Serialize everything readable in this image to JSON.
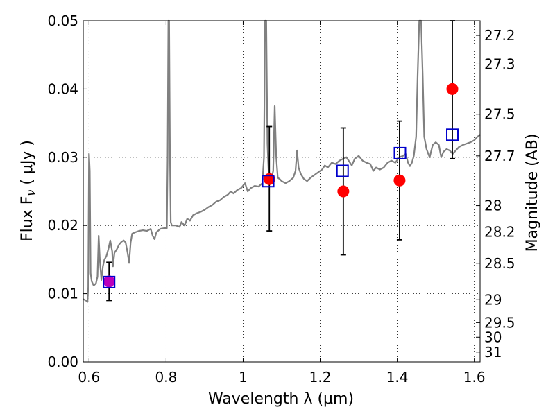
{
  "chart_data": {
    "type": "scatter",
    "xlabel": "Wavelength  λ (μm)",
    "ylabel": "Flux  F",
    "ylabel_sub": "ν",
    "ylabel_unit": " ( μJy )",
    "y2label": "Magnitude (AB)",
    "xlim": [
      0.585,
      1.615
    ],
    "ylim": [
      0.0,
      0.05
    ],
    "grid": true,
    "x_ticks": [
      {
        "value": 0.6,
        "label": "0.6"
      },
      {
        "value": 0.8,
        "label": "0.8"
      },
      {
        "value": 1.0,
        "label": "1"
      },
      {
        "value": 1.2,
        "label": "1.2"
      },
      {
        "value": 1.4,
        "label": "1.4"
      },
      {
        "value": 1.6,
        "label": "1.6"
      }
    ],
    "y_ticks": [
      {
        "value": 0.0,
        "label": "0.00"
      },
      {
        "value": 0.01,
        "label": "0.01"
      },
      {
        "value": 0.02,
        "label": "0.02"
      },
      {
        "value": 0.03,
        "label": "0.03"
      },
      {
        "value": 0.04,
        "label": "0.04"
      },
      {
        "value": 0.05,
        "label": "0.05"
      }
    ],
    "y2_ticks": [
      {
        "value": 27.2,
        "label": "27.2"
      },
      {
        "value": 27.3,
        "label": "27.3"
      },
      {
        "value": 27.5,
        "label": "27.5"
      },
      {
        "value": 27.7,
        "label": "27.7"
      },
      {
        "value": 28.0,
        "label": "28"
      },
      {
        "value": 28.2,
        "label": "28.2"
      },
      {
        "value": 28.5,
        "label": "28.5"
      },
      {
        "value": 29.0,
        "label": "29"
      },
      {
        "value": 29.5,
        "label": "29.5"
      },
      {
        "value": 30.0,
        "label": "30"
      },
      {
        "value": 31.0,
        "label": "31"
      }
    ],
    "colors": {
      "spectrum": "#808080",
      "observed": "#ff0000",
      "model": "#0000cc",
      "first_point": "#bb00bb",
      "errorbar": "#000000"
    },
    "spectrum": [
      [
        0.585,
        0.0092
      ],
      [
        0.592,
        0.009
      ],
      [
        0.596,
        0.0088
      ],
      [
        0.598,
        0.011
      ],
      [
        0.6,
        0.0305
      ],
      [
        0.602,
        0.028
      ],
      [
        0.604,
        0.013
      ],
      [
        0.607,
        0.0118
      ],
      [
        0.612,
        0.0112
      ],
      [
        0.618,
        0.0115
      ],
      [
        0.622,
        0.0125
      ],
      [
        0.625,
        0.0185
      ],
      [
        0.628,
        0.015
      ],
      [
        0.632,
        0.012
      ],
      [
        0.636,
        0.014
      ],
      [
        0.64,
        0.015
      ],
      [
        0.645,
        0.0155
      ],
      [
        0.65,
        0.0165
      ],
      [
        0.655,
        0.0178
      ],
      [
        0.66,
        0.0162
      ],
      [
        0.662,
        0.014
      ],
      [
        0.666,
        0.016
      ],
      [
        0.672,
        0.0165
      ],
      [
        0.678,
        0.0172
      ],
      [
        0.684,
        0.0176
      ],
      [
        0.69,
        0.0178
      ],
      [
        0.695,
        0.0175
      ],
      [
        0.7,
        0.016
      ],
      [
        0.704,
        0.0145
      ],
      [
        0.708,
        0.0175
      ],
      [
        0.712,
        0.0188
      ],
      [
        0.72,
        0.019
      ],
      [
        0.73,
        0.0192
      ],
      [
        0.74,
        0.0193
      ],
      [
        0.75,
        0.0192
      ],
      [
        0.76,
        0.0195
      ],
      [
        0.765,
        0.0185
      ],
      [
        0.77,
        0.018
      ],
      [
        0.775,
        0.019
      ],
      [
        0.785,
        0.0195
      ],
      [
        0.795,
        0.0196
      ],
      [
        0.802,
        0.0196
      ],
      [
        0.804,
        0.03
      ],
      [
        0.806,
        0.05
      ],
      [
        0.808,
        0.05
      ],
      [
        0.81,
        0.03
      ],
      [
        0.812,
        0.0205
      ],
      [
        0.815,
        0.02
      ],
      [
        0.825,
        0.02
      ],
      [
        0.835,
        0.0198
      ],
      [
        0.84,
        0.0205
      ],
      [
        0.848,
        0.02
      ],
      [
        0.855,
        0.021
      ],
      [
        0.862,
        0.0207
      ],
      [
        0.87,
        0.0215
      ],
      [
        0.88,
        0.0218
      ],
      [
        0.89,
        0.022
      ],
      [
        0.9,
        0.0223
      ],
      [
        0.91,
        0.0227
      ],
      [
        0.92,
        0.023
      ],
      [
        0.93,
        0.0235
      ],
      [
        0.94,
        0.0237
      ],
      [
        0.95,
        0.0242
      ],
      [
        0.96,
        0.0245
      ],
      [
        0.968,
        0.025
      ],
      [
        0.975,
        0.0247
      ],
      [
        0.985,
        0.0252
      ],
      [
        0.995,
        0.0255
      ],
      [
        1.005,
        0.0262
      ],
      [
        1.012,
        0.025
      ],
      [
        1.02,
        0.0255
      ],
      [
        1.03,
        0.0258
      ],
      [
        1.04,
        0.0257
      ],
      [
        1.05,
        0.0262
      ],
      [
        1.054,
        0.03
      ],
      [
        1.057,
        0.05
      ],
      [
        1.06,
        0.05
      ],
      [
        1.063,
        0.032
      ],
      [
        1.066,
        0.028
      ],
      [
        1.07,
        0.0275
      ],
      [
        1.074,
        0.027
      ],
      [
        1.078,
        0.028
      ],
      [
        1.082,
        0.0375
      ],
      [
        1.086,
        0.03
      ],
      [
        1.09,
        0.027
      ],
      [
        1.095,
        0.0268
      ],
      [
        1.1,
        0.0265
      ],
      [
        1.11,
        0.0262
      ],
      [
        1.12,
        0.0265
      ],
      [
        1.13,
        0.027
      ],
      [
        1.136,
        0.028
      ],
      [
        1.14,
        0.031
      ],
      [
        1.144,
        0.0285
      ],
      [
        1.15,
        0.0275
      ],
      [
        1.158,
        0.0268
      ],
      [
        1.166,
        0.0265
      ],
      [
        1.175,
        0.027
      ],
      [
        1.185,
        0.0274
      ],
      [
        1.195,
        0.0278
      ],
      [
        1.205,
        0.0282
      ],
      [
        1.212,
        0.0288
      ],
      [
        1.22,
        0.0285
      ],
      [
        1.23,
        0.0292
      ],
      [
        1.24,
        0.029
      ],
      [
        1.25,
        0.0295
      ],
      [
        1.26,
        0.0298
      ],
      [
        1.268,
        0.03
      ],
      [
        1.274,
        0.0295
      ],
      [
        1.282,
        0.0288
      ],
      [
        1.29,
        0.0298
      ],
      [
        1.3,
        0.0302
      ],
      [
        1.31,
        0.0295
      ],
      [
        1.32,
        0.0292
      ],
      [
        1.33,
        0.029
      ],
      [
        1.338,
        0.028
      ],
      [
        1.345,
        0.0285
      ],
      [
        1.355,
        0.0282
      ],
      [
        1.365,
        0.0285
      ],
      [
        1.375,
        0.0292
      ],
      [
        1.385,
        0.0295
      ],
      [
        1.395,
        0.0292
      ],
      [
        1.405,
        0.03
      ],
      [
        1.415,
        0.0302
      ],
      [
        1.422,
        0.0305
      ],
      [
        1.428,
        0.0292
      ],
      [
        1.433,
        0.0287
      ],
      [
        1.438,
        0.0292
      ],
      [
        1.443,
        0.0302
      ],
      [
        1.449,
        0.033
      ],
      [
        1.453,
        0.042
      ],
      [
        1.457,
        0.05
      ],
      [
        1.462,
        0.05
      ],
      [
        1.466,
        0.042
      ],
      [
        1.47,
        0.033
      ],
      [
        1.476,
        0.0312
      ],
      [
        1.484,
        0.03
      ],
      [
        1.492,
        0.0318
      ],
      [
        1.5,
        0.0322
      ],
      [
        1.508,
        0.0318
      ],
      [
        1.514,
        0.03
      ],
      [
        1.52,
        0.0308
      ],
      [
        1.528,
        0.0312
      ],
      [
        1.536,
        0.031
      ],
      [
        1.544,
        0.0305
      ],
      [
        1.552,
        0.031
      ],
      [
        1.56,
        0.0315
      ],
      [
        1.57,
        0.0318
      ],
      [
        1.58,
        0.032
      ],
      [
        1.59,
        0.0322
      ],
      [
        1.6,
        0.0325
      ],
      [
        1.608,
        0.033
      ],
      [
        1.615,
        0.0333
      ]
    ],
    "observed": [
      {
        "x": 0.652,
        "y": 0.0118,
        "err_lo": 0.009,
        "err_hi": 0.0146
      },
      {
        "x": 1.068,
        "y": 0.0268,
        "err_lo": 0.0192,
        "err_hi": 0.0345
      },
      {
        "x": 1.26,
        "y": 0.025,
        "err_lo": 0.0157,
        "err_hi": 0.0343
      },
      {
        "x": 1.406,
        "y": 0.0266,
        "err_lo": 0.0179,
        "err_hi": 0.0353
      },
      {
        "x": 1.543,
        "y": 0.04,
        "err_lo": 0.0298,
        "err_hi": 0.05
      }
    ],
    "model": [
      {
        "x": 0.652,
        "y": 0.0117
      },
      {
        "x": 1.065,
        "y": 0.0265
      },
      {
        "x": 1.258,
        "y": 0.028
      },
      {
        "x": 1.407,
        "y": 0.0306
      },
      {
        "x": 1.543,
        "y": 0.0333
      }
    ]
  }
}
